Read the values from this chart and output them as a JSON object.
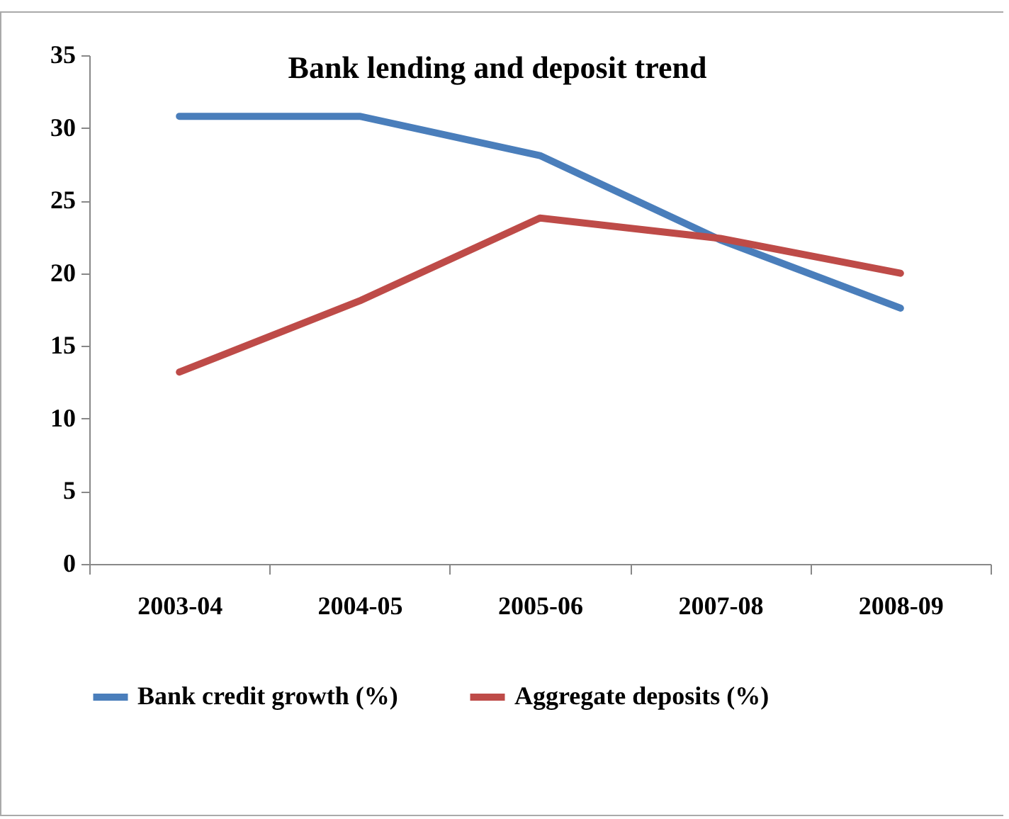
{
  "chart_data": {
    "type": "line",
    "title": "Bank lending and deposit trend",
    "categories": [
      "2003-04",
      "2004-05",
      "2005-06",
      "2007-08",
      "2008-09"
    ],
    "series": [
      {
        "name": "Bank credit growth (%)",
        "color": "#4a7ebb",
        "values": [
          30.8,
          30.8,
          28.1,
          22.3,
          17.6
        ]
      },
      {
        "name": "Aggregate deposits (%)",
        "color": "#be4b48",
        "values": [
          13.2,
          18.1,
          23.8,
          22.4,
          20.0
        ]
      }
    ],
    "ylim": [
      0,
      35
    ],
    "yticks": [
      0,
      5,
      10,
      15,
      20,
      25,
      30,
      35
    ],
    "grid": false,
    "legend": "bottom",
    "marker": "none",
    "line_style": "solid"
  }
}
